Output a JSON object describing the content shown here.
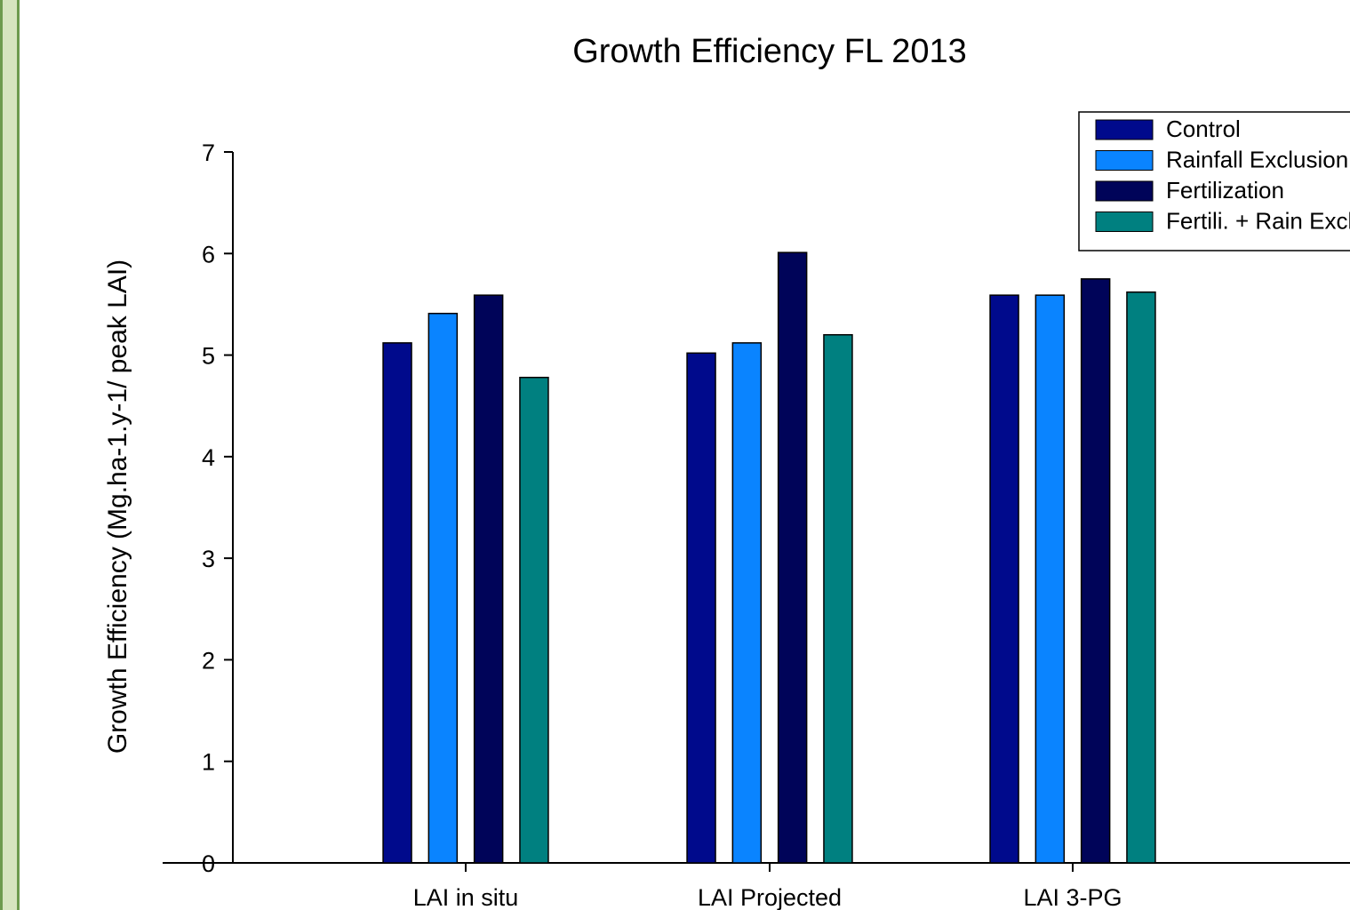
{
  "chart_data": {
    "type": "bar",
    "title": "Growth Efficiency FL 2013",
    "xlabel": "",
    "ylabel": "Growth Efficiency (Mg.ha-1.y-1/ peak LAI)",
    "ylim": [
      0,
      7
    ],
    "yticks": [
      "0",
      "1",
      "2",
      "3",
      "4",
      "5",
      "6",
      "7"
    ],
    "grid": false,
    "legend_position": "top-right",
    "categories": [
      "LAI in situ",
      "LAI Projected",
      "LAI 3-PG"
    ],
    "series": [
      {
        "name": "Control",
        "color": "#000a8c",
        "values": [
          5.12,
          5.02,
          5.59
        ]
      },
      {
        "name": "Rainfall Exclusion",
        "color": "#0a84ff",
        "values": [
          5.41,
          5.12,
          5.59
        ]
      },
      {
        "name": "Fertilization",
        "color": "#000459",
        "values": [
          5.59,
          6.01,
          5.75
        ]
      },
      {
        "name": "Fertili. + Rain Exclusion",
        "color": "#008080",
        "values": [
          4.78,
          5.2,
          5.62
        ]
      }
    ]
  }
}
